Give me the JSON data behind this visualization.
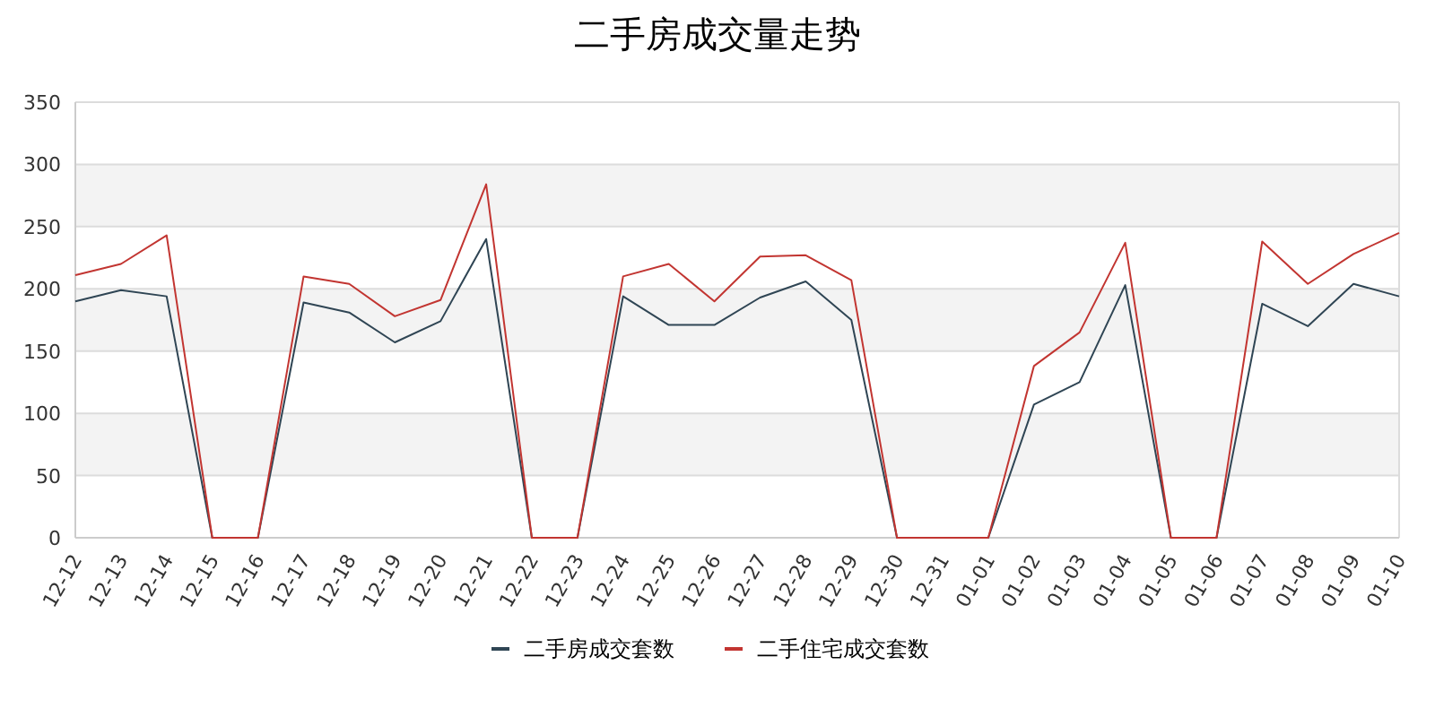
{
  "chart_data": {
    "type": "line",
    "title": "二手房成交量走势",
    "categories": [
      "12-12",
      "12-13",
      "12-14",
      "12-15",
      "12-16",
      "12-17",
      "12-18",
      "12-19",
      "12-20",
      "12-21",
      "12-22",
      "12-23",
      "12-24",
      "12-25",
      "12-26",
      "12-27",
      "12-28",
      "12-29",
      "12-30",
      "12-31",
      "01-01",
      "01-02",
      "01-03",
      "01-04",
      "01-05",
      "01-06",
      "01-07",
      "01-08",
      "01-09",
      "01-10"
    ],
    "series": [
      {
        "name": "二手房成交套数",
        "color": "#2f4554",
        "values": [
          190,
          199,
          194,
          0,
          0,
          189,
          181,
          157,
          174,
          240,
          0,
          0,
          194,
          171,
          171,
          193,
          206,
          175,
          0,
          0,
          0,
          107,
          125,
          203,
          0,
          0,
          188,
          170,
          204,
          194
        ]
      },
      {
        "name": "二手住宅成交套数",
        "color": "#c23531",
        "values": [
          211,
          220,
          243,
          0,
          0,
          210,
          204,
          178,
          191,
          284,
          0,
          0,
          210,
          220,
          190,
          226,
          227,
          207,
          0,
          0,
          0,
          138,
          165,
          237,
          0,
          0,
          238,
          204,
          228,
          245
        ]
      }
    ],
    "ylim": [
      0,
      350
    ],
    "yticks": [
      0,
      50,
      100,
      150,
      200,
      250,
      300,
      350
    ],
    "bands": [
      {
        "axis": "y",
        "from": 50,
        "to": 100,
        "color": "#f3f3f3"
      },
      {
        "axis": "y",
        "from": 150,
        "to": 200,
        "color": "#f3f3f3"
      },
      {
        "axis": "y",
        "from": 250,
        "to": 300,
        "color": "#f3f3f3"
      }
    ],
    "grid": "y",
    "legend": "bottom",
    "marker": "none",
    "line_style": "solid"
  }
}
